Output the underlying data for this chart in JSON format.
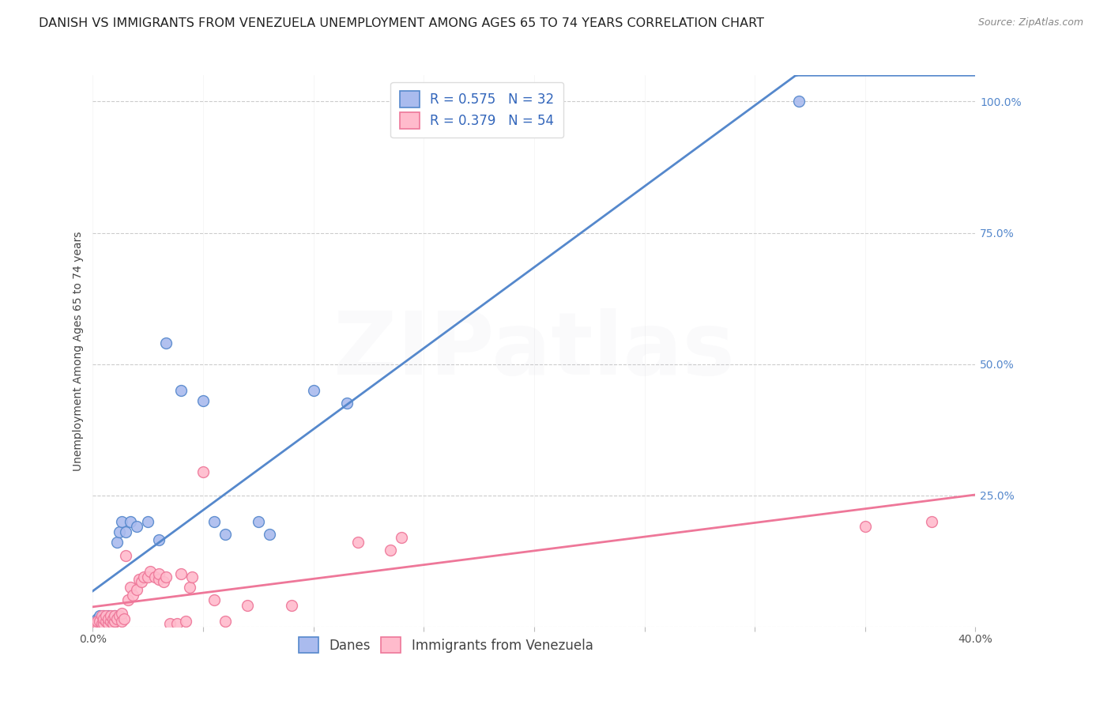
{
  "title": "DANISH VS IMMIGRANTS FROM VENEZUELA UNEMPLOYMENT AMONG AGES 65 TO 74 YEARS CORRELATION CHART",
  "source": "Source: ZipAtlas.com",
  "ylabel": "Unemployment Among Ages 65 to 74 years",
  "xlim": [
    0.0,
    0.4
  ],
  "ylim": [
    0.0,
    1.05
  ],
  "x_tick_positions": [
    0.0,
    0.05,
    0.1,
    0.15,
    0.2,
    0.25,
    0.3,
    0.35,
    0.4
  ],
  "x_tick_labels": [
    "0.0%",
    "",
    "",
    "",
    "",
    "",
    "",
    "",
    "40.0%"
  ],
  "y_tick_positions": [
    0.0,
    0.25,
    0.5,
    0.75,
    1.0
  ],
  "y_tick_labels": [
    "",
    "25.0%",
    "50.0%",
    "75.0%",
    "100.0%"
  ],
  "grid_color": "#cccccc",
  "background_color": "#ffffff",
  "danes_line_color": "#5588cc",
  "danes_face_color": "#aabbee",
  "danes_edge_color": "#5588cc",
  "venezuela_line_color": "#ee7799",
  "venezuela_face_color": "#ffbbcc",
  "venezuela_edge_color": "#ee7799",
  "danes_R": 0.575,
  "danes_N": 32,
  "venezuela_R": 0.379,
  "venezuela_N": 54,
  "legend_labels": [
    "Danes",
    "Immigrants from Venezuela"
  ],
  "danes_x": [
    0.001,
    0.002,
    0.003,
    0.003,
    0.004,
    0.005,
    0.005,
    0.006,
    0.007,
    0.007,
    0.008,
    0.009,
    0.01,
    0.01,
    0.011,
    0.012,
    0.013,
    0.015,
    0.017,
    0.02,
    0.025,
    0.03,
    0.033,
    0.04,
    0.05,
    0.055,
    0.06,
    0.075,
    0.08,
    0.1,
    0.115,
    0.32
  ],
  "danes_y": [
    0.01,
    0.015,
    0.005,
    0.02,
    0.01,
    0.02,
    0.005,
    0.015,
    0.01,
    0.02,
    0.015,
    0.01,
    0.02,
    0.015,
    0.16,
    0.18,
    0.2,
    0.18,
    0.2,
    0.19,
    0.2,
    0.165,
    0.54,
    0.45,
    0.43,
    0.2,
    0.175,
    0.2,
    0.175,
    0.45,
    0.425,
    1.0
  ],
  "venezuela_x": [
    0.001,
    0.002,
    0.002,
    0.003,
    0.004,
    0.004,
    0.005,
    0.005,
    0.006,
    0.006,
    0.007,
    0.007,
    0.008,
    0.008,
    0.009,
    0.009,
    0.01,
    0.01,
    0.011,
    0.012,
    0.013,
    0.013,
    0.014,
    0.015,
    0.016,
    0.017,
    0.018,
    0.02,
    0.021,
    0.022,
    0.023,
    0.025,
    0.026,
    0.028,
    0.03,
    0.03,
    0.032,
    0.033,
    0.035,
    0.038,
    0.04,
    0.042,
    0.044,
    0.045,
    0.05,
    0.055,
    0.06,
    0.07,
    0.09,
    0.12,
    0.135,
    0.14,
    0.35,
    0.38
  ],
  "venezuela_y": [
    0.005,
    0.005,
    0.01,
    0.01,
    0.005,
    0.02,
    0.005,
    0.015,
    0.01,
    0.02,
    0.005,
    0.015,
    0.01,
    0.02,
    0.005,
    0.015,
    0.01,
    0.02,
    0.015,
    0.02,
    0.01,
    0.025,
    0.015,
    0.135,
    0.05,
    0.075,
    0.06,
    0.07,
    0.09,
    0.085,
    0.095,
    0.095,
    0.105,
    0.095,
    0.09,
    0.1,
    0.085,
    0.095,
    0.005,
    0.005,
    0.1,
    0.01,
    0.075,
    0.095,
    0.295,
    0.05,
    0.01,
    0.04,
    0.04,
    0.16,
    0.145,
    0.17,
    0.19,
    0.2
  ],
  "title_fontsize": 11.5,
  "axis_label_fontsize": 10,
  "tick_fontsize": 10,
  "legend_fontsize": 12,
  "watermark_text": "ZIPatlas",
  "watermark_alpha": 0.07,
  "watermark_fontsize": 80
}
